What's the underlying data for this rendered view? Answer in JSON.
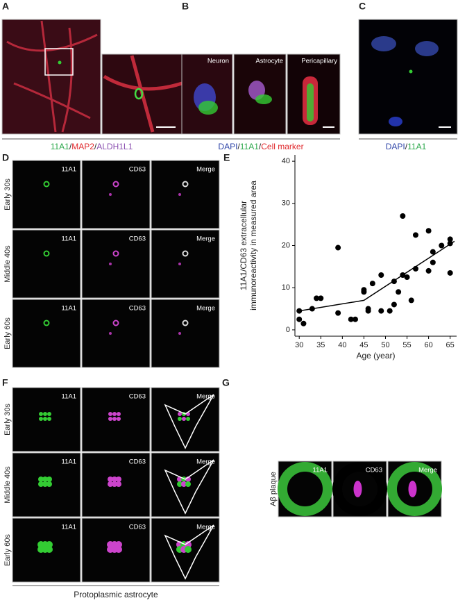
{
  "panels": {
    "A": {
      "label": "A",
      "caption": [
        "11A1",
        "/",
        "MAP2",
        "/",
        "ALDH1L1"
      ]
    },
    "B": {
      "label": "B",
      "titles": [
        "Neuron",
        "Astrocyte",
        "Pericapillary"
      ],
      "caption": [
        "DAPI",
        "/",
        "11A1",
        "/",
        "Cell marker"
      ]
    },
    "C": {
      "label": "C",
      "caption": [
        "DAPI",
        "/",
        "11A1"
      ]
    },
    "D": {
      "label": "D",
      "columns": [
        "11A1",
        "CD63",
        "Merge"
      ],
      "rows": [
        "Early 30s",
        "Middle 40s",
        "Early 60s"
      ]
    },
    "E": {
      "label": "E"
    },
    "F": {
      "label": "F",
      "columns": [
        "11A1",
        "CD63",
        "Merge"
      ],
      "rows": [
        "Early 30s",
        "Middle 40s",
        "Early 60s"
      ],
      "caption": "Protoplasmic astrocyte"
    },
    "G": {
      "label": "G",
      "columns": [
        "11A1",
        "CD63",
        "Merge"
      ],
      "rows": [
        "Aβ plaque"
      ]
    }
  },
  "chart_data": {
    "type": "scatter",
    "xlabel": "Age (year)",
    "ylabel": [
      "11A1/CD63 extracellular",
      "immunoreactivity in measured area"
    ],
    "x": [
      30,
      30,
      31,
      33,
      34,
      35,
      39,
      39,
      42,
      43,
      45,
      45,
      46,
      46,
      47,
      49,
      49,
      51,
      52,
      52,
      53,
      54,
      54,
      55,
      56,
      57,
      57,
      60,
      60,
      61,
      61,
      63,
      65,
      65,
      65
    ],
    "values": [
      4.5,
      2.5,
      1.5,
      5,
      7.5,
      7.5,
      19.5,
      4,
      2.5,
      2.5,
      9.5,
      9,
      5,
      4.5,
      11,
      13,
      4.5,
      4.5,
      11.5,
      6,
      9,
      13,
      27,
      12.5,
      7,
      22.5,
      14.5,
      23.5,
      14,
      18.5,
      16,
      20,
      21.5,
      20.5,
      13.5
    ],
    "color": "#000000",
    "fit_x": [
      30,
      45,
      66
    ],
    "fit_values": [
      4.5,
      7,
      21
    ],
    "xlim": [
      29,
      66.5
    ],
    "ylim": [
      -1.5,
      41.5
    ],
    "xticks": [
      30,
      35,
      40,
      45,
      50,
      55,
      60,
      65
    ],
    "yticks": [
      0,
      10,
      20,
      30,
      40
    ]
  }
}
